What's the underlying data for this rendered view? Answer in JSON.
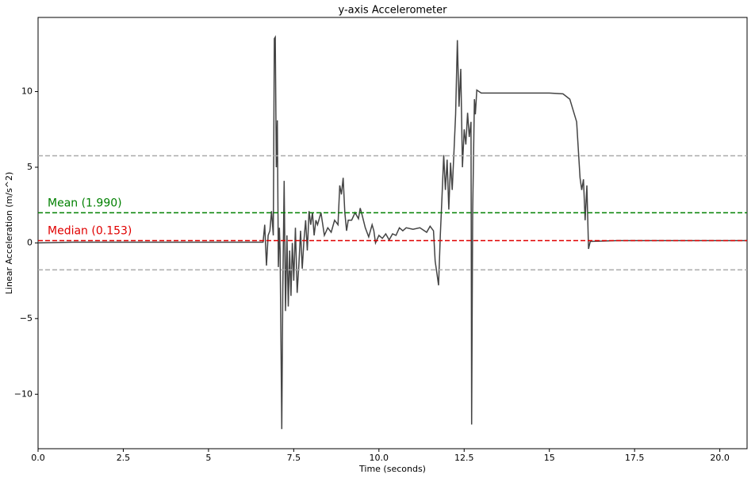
{
  "chart_data": {
    "type": "line",
    "title": "y-axis Accelerometer",
    "x_label": "Time (seconds)",
    "y_label": "Linear Acceleration (m/s^2)",
    "xlim": [
      0,
      20.8
    ],
    "ylim": [
      -13.6,
      14.9
    ],
    "xticks": [
      {
        "value": 0,
        "label": "0.0"
      },
      2.5,
      5,
      {
        "value": 7.5,
        "label": "7.5"
      },
      {
        "value": 10,
        "label": "10.0"
      },
      12.5,
      15,
      17.5,
      {
        "value": 20,
        "label": "20.0"
      }
    ],
    "yticks": [
      {
        "value": -10,
        "label": "−10"
      },
      {
        "value": -5,
        "label": "−5"
      },
      0,
      5,
      10
    ],
    "hlines": [
      {
        "value": 5.76,
        "color": "#aaaaaa"
      },
      {
        "value": -1.78,
        "color": "#aaaaaa"
      },
      {
        "value": 1.99,
        "color": "#008000",
        "label": "Mean (1.990)"
      },
      {
        "value": 0.153,
        "color": "#e00000",
        "label": "Median (0.153)"
      }
    ],
    "series": [
      {
        "color": "#444444",
        "x": [
          0,
          1,
          2,
          3,
          4,
          5,
          6,
          6.6,
          6.65,
          6.7,
          6.75,
          6.8,
          6.85,
          6.9,
          6.93,
          6.96,
          6.99,
          7.02,
          7.05,
          7.08,
          7.1,
          7.15,
          7.18,
          7.22,
          7.26,
          7.3,
          7.34,
          7.38,
          7.42,
          7.46,
          7.5,
          7.55,
          7.6,
          7.65,
          7.7,
          7.75,
          7.8,
          7.85,
          7.9,
          7.95,
          8.0,
          8.05,
          8.1,
          8.15,
          8.2,
          8.3,
          8.4,
          8.5,
          8.6,
          8.7,
          8.8,
          8.85,
          8.9,
          8.95,
          9.0,
          9.05,
          9.1,
          9.2,
          9.3,
          9.4,
          9.45,
          9.5,
          9.6,
          9.7,
          9.8,
          9.85,
          9.9,
          10.0,
          10.1,
          10.2,
          10.3,
          10.4,
          10.5,
          10.6,
          10.7,
          10.8,
          11,
          11.2,
          11.4,
          11.5,
          11.6,
          11.65,
          11.7,
          11.75,
          11.8,
          11.85,
          11.9,
          11.95,
          12.0,
          12.05,
          12.1,
          12.15,
          12.2,
          12.25,
          12.3,
          12.35,
          12.4,
          12.45,
          12.5,
          12.55,
          12.6,
          12.65,
          12.7,
          12.72,
          12.75,
          12.8,
          12.83,
          12.87,
          13,
          14,
          15,
          15.4,
          15.6,
          15.8,
          15.9,
          15.95,
          16.0,
          16.05,
          16.1,
          16.15,
          16.2,
          17,
          18,
          19,
          20,
          20.8
        ],
        "values": [
          0.0,
          0.05,
          0.05,
          0.05,
          0.05,
          0.05,
          0.05,
          0.05,
          1.2,
          -1.5,
          0.5,
          0.8,
          2.1,
          0.5,
          13.5,
          13.6,
          5.0,
          8.1,
          -1.6,
          1.0,
          -0.5,
          -12.3,
          -3,
          4.1,
          -4.5,
          0.5,
          -4.2,
          -0.5,
          -3.5,
          0,
          -2.5,
          1.0,
          -3.3,
          -1.5,
          0.8,
          -1.7,
          0.2,
          1.5,
          -0.5,
          2.1,
          1.2,
          2.0,
          0.5,
          1.5,
          1.2,
          2.0,
          0.5,
          1.0,
          0.7,
          1.5,
          1.2,
          3.8,
          3.2,
          4.3,
          2.0,
          0.8,
          1.5,
          1.5,
          2.0,
          1.6,
          2.3,
          1.9,
          1.0,
          0.4,
          1.2,
          0.8,
          0.0,
          0.5,
          0.3,
          0.6,
          0.2,
          0.6,
          0.5,
          1.0,
          0.8,
          1.0,
          0.9,
          1.0,
          0.7,
          1.1,
          0.8,
          -1.2,
          -2.0,
          -2.8,
          0.5,
          3.0,
          5.8,
          3.5,
          5.5,
          2.2,
          5.3,
          3.5,
          6.0,
          8.5,
          13.4,
          9.0,
          11.5,
          5.0,
          7.5,
          6.5,
          8.6,
          7.0,
          8.0,
          -12.0,
          2.0,
          9.5,
          8.5,
          10.1,
          9.9,
          9.9,
          9.9,
          9.85,
          9.5,
          8.0,
          4.3,
          3.5,
          4.2,
          1.5,
          3.8,
          -0.4,
          0.1,
          0.15,
          0.15,
          0.15,
          0.15,
          0.15
        ]
      }
    ]
  }
}
